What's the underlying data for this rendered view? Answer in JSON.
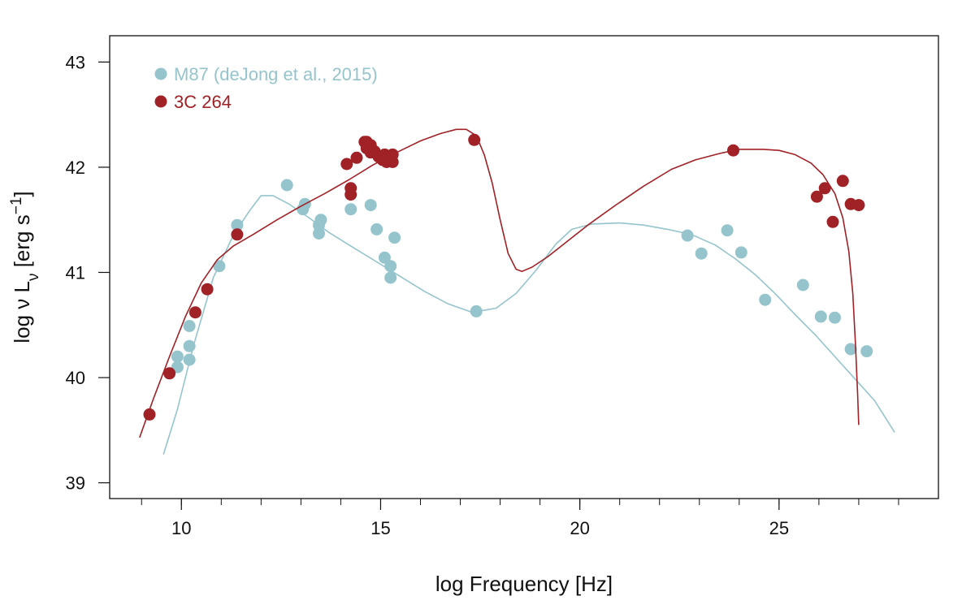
{
  "chart_data": {
    "type": "scatter",
    "title": "",
    "xlabel": "log Frequency [Hz]",
    "ylabel": {
      "prefix": "log  ν L",
      "subscript": "ν",
      "unit_open": " [erg  s",
      "exponent": "−1",
      "unit_close": "]"
    },
    "xlim": [
      8.2,
      29.0
    ],
    "ylim": [
      38.85,
      43.25
    ],
    "xticks": [
      10,
      15,
      20,
      25
    ],
    "xticks_minor": [
      9,
      10,
      11,
      12,
      13,
      14,
      15,
      16,
      17,
      18,
      19,
      20,
      21,
      22,
      23,
      24,
      25,
      26,
      27,
      28
    ],
    "yticks": [
      39,
      40,
      41,
      42,
      43
    ],
    "grid": false,
    "legend_position": "top-left",
    "series": [
      {
        "name": "M87 (deJong et al., 2015)",
        "color": "#95c4cd",
        "points": [
          [
            9.9,
            40.1
          ],
          [
            9.9,
            40.2
          ],
          [
            10.2,
            40.17
          ],
          [
            10.2,
            40.3
          ],
          [
            10.2,
            40.49
          ],
          [
            10.95,
            41.06
          ],
          [
            11.4,
            41.45
          ],
          [
            12.65,
            41.83
          ],
          [
            13.05,
            41.6
          ],
          [
            13.1,
            41.65
          ],
          [
            13.45,
            41.37
          ],
          [
            13.45,
            41.45
          ],
          [
            13.5,
            41.5
          ],
          [
            14.25,
            41.6
          ],
          [
            14.75,
            41.64
          ],
          [
            14.9,
            41.41
          ],
          [
            15.1,
            41.14
          ],
          [
            15.25,
            41.06
          ],
          [
            15.25,
            40.95
          ],
          [
            15.35,
            41.33
          ],
          [
            17.4,
            40.63
          ],
          [
            22.7,
            41.35
          ],
          [
            23.05,
            41.18
          ],
          [
            23.7,
            41.4
          ],
          [
            24.05,
            41.19
          ],
          [
            24.65,
            40.74
          ],
          [
            25.6,
            40.88
          ],
          [
            26.05,
            40.58
          ],
          [
            26.4,
            40.57
          ],
          [
            26.8,
            40.27
          ],
          [
            27.2,
            40.25
          ]
        ],
        "curve": [
          [
            9.55,
            39.27
          ],
          [
            9.9,
            39.7
          ],
          [
            10.3,
            40.3
          ],
          [
            10.8,
            40.95
          ],
          [
            11.3,
            41.35
          ],
          [
            11.7,
            41.58
          ],
          [
            12.0,
            41.73
          ],
          [
            12.3,
            41.73
          ],
          [
            12.7,
            41.65
          ],
          [
            13.2,
            41.52
          ],
          [
            13.7,
            41.38
          ],
          [
            14.3,
            41.24
          ],
          [
            14.9,
            41.1
          ],
          [
            15.5,
            40.96
          ],
          [
            16.1,
            40.82
          ],
          [
            16.7,
            40.7
          ],
          [
            17.3,
            40.62
          ],
          [
            17.9,
            40.66
          ],
          [
            18.4,
            40.8
          ],
          [
            18.9,
            41.02
          ],
          [
            19.4,
            41.27
          ],
          [
            19.8,
            41.41
          ],
          [
            20.3,
            41.46
          ],
          [
            21.0,
            41.47
          ],
          [
            21.6,
            41.45
          ],
          [
            22.2,
            41.41
          ],
          [
            22.8,
            41.36
          ],
          [
            23.4,
            41.26
          ],
          [
            23.9,
            41.13
          ],
          [
            24.4,
            40.98
          ],
          [
            24.9,
            40.8
          ],
          [
            25.4,
            40.6
          ],
          [
            25.9,
            40.41
          ],
          [
            26.4,
            40.2
          ],
          [
            26.9,
            39.99
          ],
          [
            27.4,
            39.78
          ],
          [
            27.9,
            39.48
          ]
        ]
      },
      {
        "name": "3C 264",
        "color": "#a02126",
        "points": [
          [
            9.2,
            39.65
          ],
          [
            9.7,
            40.04
          ],
          [
            10.35,
            40.62
          ],
          [
            10.65,
            40.84
          ],
          [
            11.4,
            41.36
          ],
          [
            14.15,
            42.03
          ],
          [
            14.25,
            41.8
          ],
          [
            14.25,
            41.74
          ],
          [
            14.4,
            42.09
          ],
          [
            14.6,
            42.24
          ],
          [
            14.65,
            42.24
          ],
          [
            14.65,
            42.18
          ],
          [
            14.75,
            42.21
          ],
          [
            14.75,
            42.14
          ],
          [
            14.85,
            42.15
          ],
          [
            14.95,
            42.1
          ],
          [
            15.05,
            42.07
          ],
          [
            15.1,
            42.12
          ],
          [
            15.15,
            42.05
          ],
          [
            15.2,
            42.1
          ],
          [
            15.3,
            42.05
          ],
          [
            15.3,
            42.12
          ],
          [
            17.35,
            42.26
          ],
          [
            23.85,
            42.16
          ],
          [
            25.95,
            41.72
          ],
          [
            26.15,
            41.8
          ],
          [
            26.35,
            41.48
          ],
          [
            26.6,
            41.87
          ],
          [
            26.8,
            41.65
          ],
          [
            27.0,
            41.64
          ]
        ],
        "curve": [
          [
            8.95,
            39.43
          ],
          [
            9.3,
            39.8
          ],
          [
            9.7,
            40.2
          ],
          [
            10.1,
            40.58
          ],
          [
            10.5,
            40.9
          ],
          [
            10.9,
            41.12
          ],
          [
            11.3,
            41.25
          ],
          [
            11.8,
            41.36
          ],
          [
            12.4,
            41.5
          ],
          [
            13.0,
            41.63
          ],
          [
            13.6,
            41.75
          ],
          [
            14.2,
            41.88
          ],
          [
            14.8,
            42.02
          ],
          [
            15.4,
            42.14
          ],
          [
            16.0,
            42.25
          ],
          [
            16.5,
            42.32
          ],
          [
            16.9,
            42.36
          ],
          [
            17.15,
            42.36
          ],
          [
            17.4,
            42.3
          ],
          [
            17.6,
            42.12
          ],
          [
            17.8,
            41.85
          ],
          [
            18.0,
            41.5
          ],
          [
            18.2,
            41.18
          ],
          [
            18.4,
            41.03
          ],
          [
            18.55,
            41.01
          ],
          [
            18.8,
            41.05
          ],
          [
            19.2,
            41.15
          ],
          [
            19.6,
            41.27
          ],
          [
            20.2,
            41.45
          ],
          [
            20.9,
            41.64
          ],
          [
            21.6,
            41.82
          ],
          [
            22.3,
            41.98
          ],
          [
            22.9,
            42.07
          ],
          [
            23.5,
            42.13
          ],
          [
            24.0,
            42.17
          ],
          [
            24.6,
            42.17
          ],
          [
            25.0,
            42.16
          ],
          [
            25.4,
            42.12
          ],
          [
            25.8,
            42.04
          ],
          [
            26.1,
            41.93
          ],
          [
            26.4,
            41.75
          ],
          [
            26.6,
            41.52
          ],
          [
            26.75,
            41.2
          ],
          [
            26.85,
            40.8
          ],
          [
            26.92,
            40.3
          ],
          [
            26.97,
            39.85
          ],
          [
            27.0,
            39.55
          ]
        ]
      }
    ]
  }
}
